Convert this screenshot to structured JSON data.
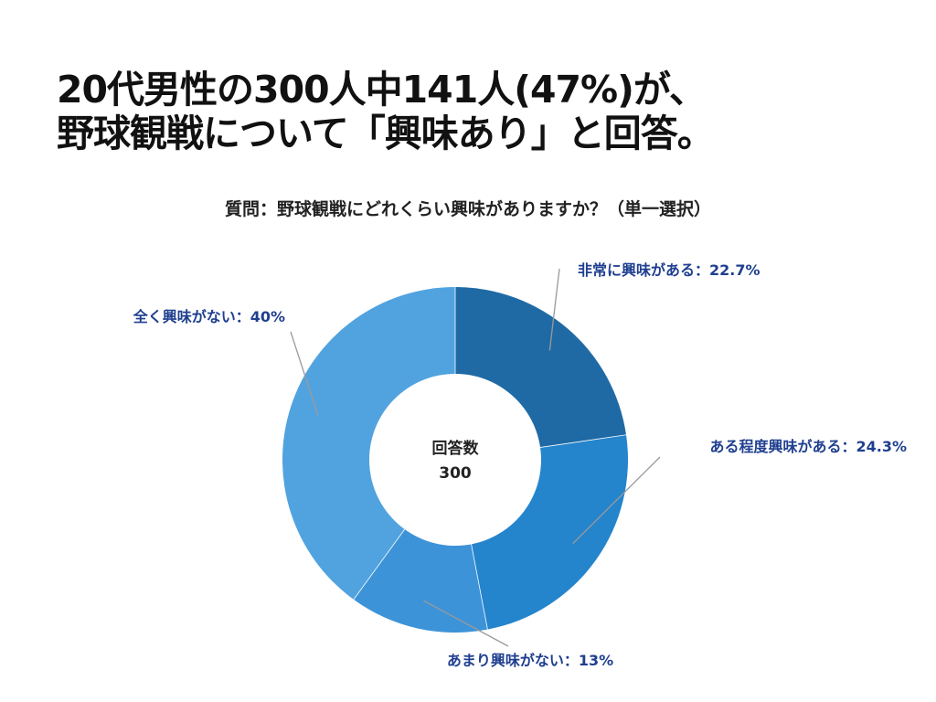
{
  "headline": {
    "line1": "20代男性の300人中141人(47%)が、",
    "line2": "野球観戦について「興味あり」と回答。"
  },
  "question": "質問：野球観戦にどれくらい興味がありますか？（単一選択）",
  "chart_data": {
    "type": "pie",
    "donut": true,
    "center_label": "回答数",
    "center_value": "300",
    "slices": [
      {
        "label": "非常に興味がある：22.7%",
        "value": 22.7,
        "color": "#1f6aa5"
      },
      {
        "label": "ある程度興味がある：24.3%",
        "value": 24.3,
        "color": "#2484cc"
      },
      {
        "label": "あまり興味がない：13%",
        "value": 13,
        "color": "#3d93d8"
      },
      {
        "label": "全く興味がない：40%",
        "value": 40,
        "color": "#51a3df"
      }
    ],
    "label_color": "#1f3f8f"
  }
}
